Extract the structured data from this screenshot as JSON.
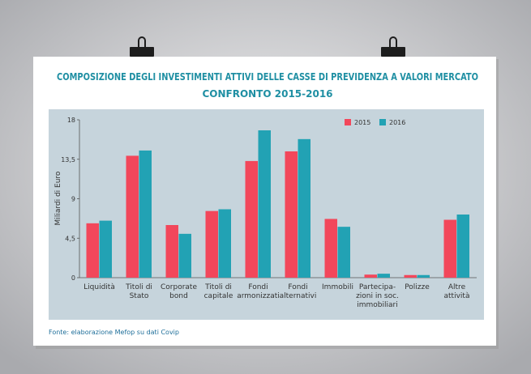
{
  "chart_data": {
    "type": "bar",
    "title": "COMPOSIZIONE DEGLI INVESTIMENTI ATTIVI DELLE CASSE DI PREVIDENZA A VALORI MERCATO",
    "subtitle": "CONFRONTO 2015-2016",
    "y_label": "Miliardi di Euro",
    "source": "Fonte: elaborazione Mefop su dati Covip",
    "categories": [
      "Liquidità",
      "Titoli di\nStato",
      "Corporate\nbond",
      "Titoli di\ncapitale",
      "Fondi\narmonizzati",
      "Fondi\nalternativi",
      "Immobili",
      "Partecipa-\nzioni in soc.\nimmobiliari",
      "Polizze",
      "Altre\nattività"
    ],
    "series": [
      {
        "name": "2015",
        "color": "#f2475b",
        "values": [
          6.2,
          13.9,
          6.0,
          7.6,
          13.3,
          14.4,
          6.7,
          0.35,
          0.3,
          6.6
        ]
      },
      {
        "name": "2016",
        "color": "#22a2b4",
        "values": [
          6.5,
          14.5,
          5.0,
          7.8,
          16.8,
          15.8,
          5.8,
          0.45,
          0.3,
          7.2
        ]
      }
    ],
    "ylim": [
      0,
      18
    ],
    "yticks": [
      0,
      {
        "value": 4.5,
        "label": "4,5"
      },
      9,
      {
        "value": 13.5,
        "label": "13,5"
      },
      18
    ],
    "legend": "top-right"
  }
}
